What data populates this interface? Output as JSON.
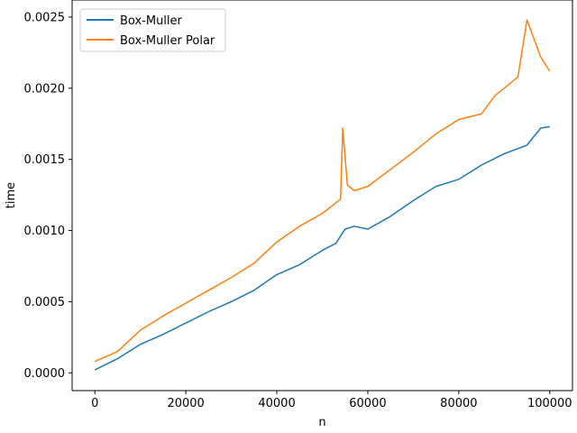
{
  "chart_data": {
    "type": "line",
    "title": "",
    "xlabel": "n",
    "ylabel": "time",
    "xlim": [
      -5000,
      105000
    ],
    "ylim": [
      -0.000125,
      0.00262
    ],
    "x_ticks": [
      0,
      20000,
      40000,
      60000,
      80000,
      100000
    ],
    "x_tick_labels": [
      "0",
      "20000",
      "40000",
      "60000",
      "80000",
      "100000"
    ],
    "y_ticks": [
      0.0,
      0.0005,
      0.001,
      0.0015,
      0.002,
      0.0025
    ],
    "y_tick_labels": [
      "0.0000",
      "0.0005",
      "0.0010",
      "0.0015",
      "0.0020",
      "0.0025"
    ],
    "grid": false,
    "legend": "upper-left",
    "series": [
      {
        "name": "Box-Muller",
        "color": "#1f77b4",
        "x": [
          0,
          5000,
          10000,
          15000,
          20000,
          25000,
          30000,
          35000,
          40000,
          45000,
          50000,
          53000,
          55000,
          57000,
          60000,
          65000,
          70000,
          75000,
          80000,
          85000,
          90000,
          95000,
          98000,
          100000
        ],
        "y": [
          2e-05,
          0.0001,
          0.0002,
          0.00027,
          0.00035,
          0.00043,
          0.0005,
          0.00058,
          0.00069,
          0.00076,
          0.00086,
          0.00091,
          0.00101,
          0.00103,
          0.00101,
          0.0011,
          0.00121,
          0.00131,
          0.00136,
          0.00146,
          0.00154,
          0.0016,
          0.00172,
          0.00173
        ]
      },
      {
        "name": "Box-Muller Polar",
        "color": "#ff7f0e",
        "x": [
          0,
          5000,
          10000,
          15000,
          20000,
          25000,
          30000,
          35000,
          40000,
          45000,
          50000,
          54000,
          54500,
          55500,
          57000,
          60000,
          65000,
          70000,
          75000,
          80000,
          85000,
          88000,
          90000,
          93000,
          95000,
          98000,
          100000
        ],
        "y": [
          8e-05,
          0.00015,
          0.0003,
          0.0004,
          0.00049,
          0.00058,
          0.00067,
          0.00077,
          0.00092,
          0.00103,
          0.00112,
          0.00122,
          0.00172,
          0.00132,
          0.00128,
          0.00131,
          0.00143,
          0.00155,
          0.00168,
          0.00178,
          0.00182,
          0.00195,
          0.002,
          0.00208,
          0.00248,
          0.00222,
          0.00212
        ]
      }
    ]
  }
}
